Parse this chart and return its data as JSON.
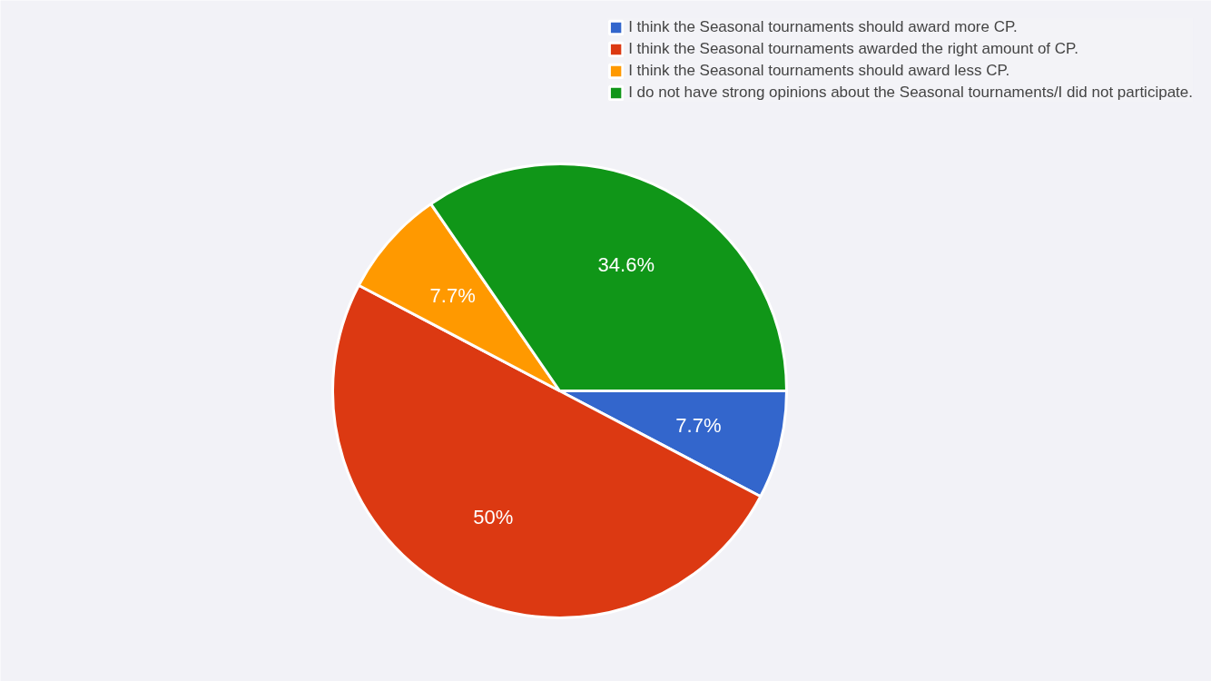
{
  "chart_data": {
    "type": "pie",
    "categories": [
      "I think the Seasonal tournaments should award more CP.",
      "I think the Seasonal tournaments awarded the right amount of CP.",
      "I think the Seasonal tournaments should award less CP.",
      "I do not have strong opinions about the Seasonal tournaments/I did not participate."
    ],
    "values": [
      7.7,
      50,
      7.7,
      34.6
    ],
    "colors": [
      "#3366cc",
      "#dc3912",
      "#ff9900",
      "#109618"
    ],
    "value_labels": [
      "7.7%",
      "50%",
      "7.7%",
      "34.6%"
    ],
    "legend": "top right"
  }
}
